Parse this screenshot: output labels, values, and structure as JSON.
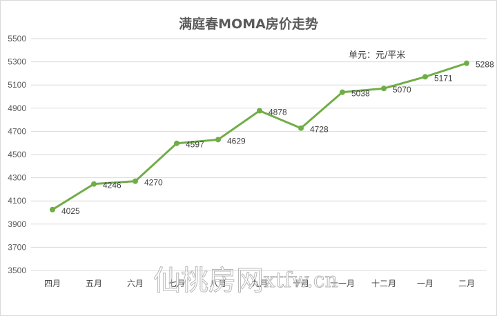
{
  "chart_data": {
    "type": "line",
    "title": "满庭春MOMA房价走势",
    "subtitle": "单元：元/平米",
    "xlabel": "",
    "ylabel": "",
    "categories": [
      "四月",
      "五月",
      "六月",
      "七月",
      "八月",
      "九月",
      "十月",
      "十一月",
      "十二月",
      "一月",
      "二月"
    ],
    "series": [
      {
        "name": "房价",
        "values": [
          4025,
          4246,
          4270,
          4597,
          4629,
          4878,
          4728,
          5038,
          5070,
          5171,
          5288
        ],
        "color": "#70ad47"
      }
    ],
    "ylim": [
      3500,
      5500
    ],
    "yticks": [
      3500,
      3700,
      3900,
      4100,
      4300,
      4500,
      4700,
      4900,
      5100,
      5300,
      5500
    ],
    "grid": true,
    "legend": "none",
    "data_labels": true
  },
  "watermark": {
    "cn": "仙桃房网",
    "en": "xtfw.cn"
  },
  "colors": {
    "line": "#70ad47",
    "grid": "#d9d9d9",
    "text": "#595959"
  }
}
